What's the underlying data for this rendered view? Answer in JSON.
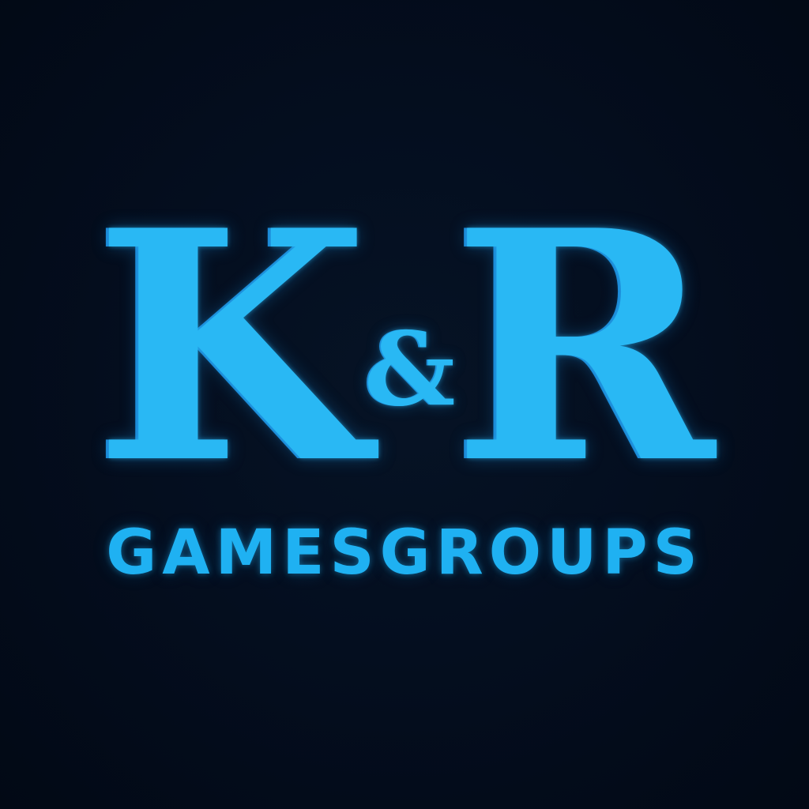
{
  "logo": {
    "initial_left": "K",
    "ampersand": "&",
    "initial_right": "R",
    "wordmark": "GAMESGROUPS"
  },
  "colors": {
    "background": "#030c1c",
    "accent": "#29b8f4",
    "accent_shadow": "#1c86d4"
  }
}
